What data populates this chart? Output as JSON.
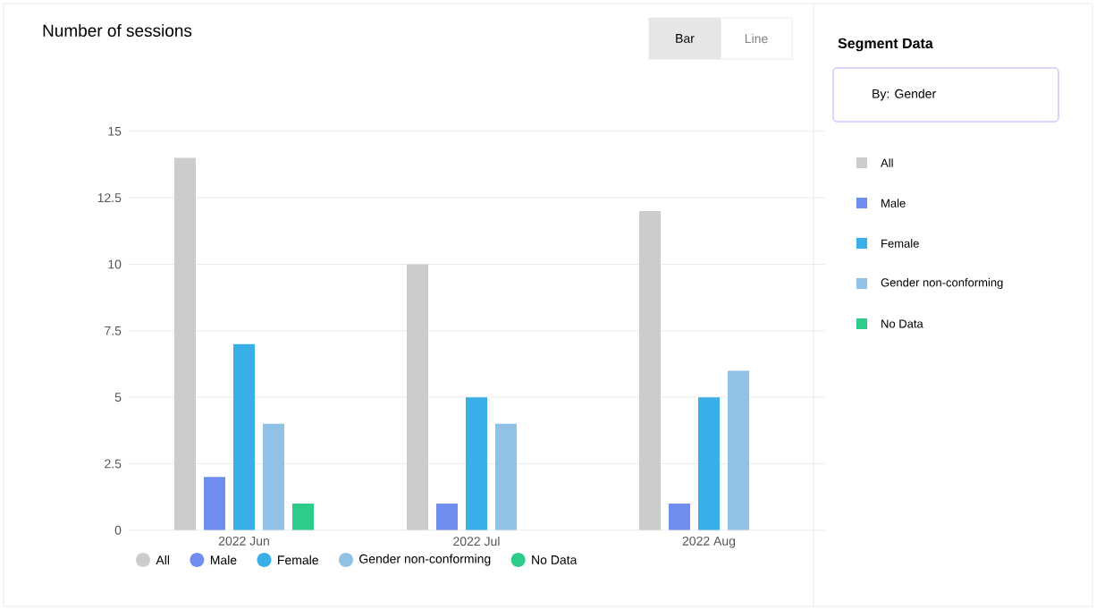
{
  "chart_data": {
    "type": "bar",
    "title": "Number of sessions",
    "categories": [
      "2022 Jun",
      "2022 Jul",
      "2022 Aug"
    ],
    "series": [
      {
        "name": "All",
        "color": "#cccccc",
        "values": [
          14,
          10,
          12
        ]
      },
      {
        "name": "Male",
        "color": "#6f8ef0",
        "values": [
          2,
          1,
          1
        ]
      },
      {
        "name": "Female",
        "color": "#3aaee6",
        "values": [
          7,
          5,
          5
        ]
      },
      {
        "name": "Gender non-conforming",
        "color": "#92c1e6",
        "values": [
          4,
          4,
          6
        ]
      },
      {
        "name": "No Data",
        "color": "#2ecc8a",
        "values": [
          1,
          null,
          null
        ]
      }
    ],
    "ylim": [
      0,
      15
    ],
    "yticks": [
      0,
      2.5,
      5,
      7.5,
      10,
      12.5,
      15
    ],
    "grid": "y",
    "legend": "bottom",
    "annotations": [
      "Bar",
      "Line",
      "Segment Data",
      "By: Gender"
    ]
  }
}
